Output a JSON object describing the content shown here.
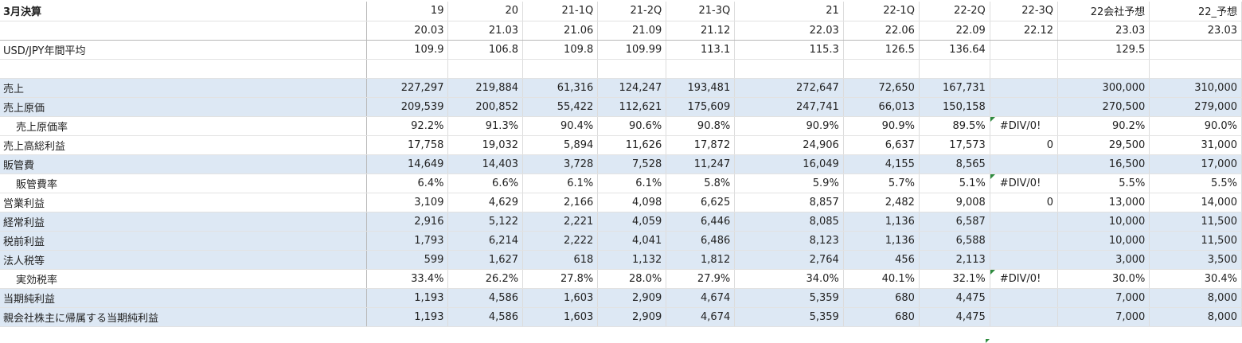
{
  "sheet": {
    "corner_label": "3月決算",
    "periods": [
      "19",
      "20",
      "21-1Q",
      "21-2Q",
      "21-3Q",
      "21",
      "22-1Q",
      "22-2Q",
      "22-3Q",
      "22会社予想",
      "22_予想"
    ],
    "dates": [
      "20.03",
      "21.03",
      "21.06",
      "21.09",
      "21.12",
      "22.03",
      "22.06",
      "22.09",
      "22.12",
      "23.03",
      "23.03"
    ],
    "fx_label": "USD/JPY年間平均",
    "fx_values": [
      "109.9",
      "106.8",
      "109.8",
      "109.99",
      "113.1",
      "115.3",
      "126.5",
      "136.64",
      "",
      "129.5",
      ""
    ],
    "rows": [
      {
        "label": "売上",
        "indent": false,
        "shaded": true,
        "values": [
          "227,297",
          "219,884",
          "61,316",
          "124,247",
          "193,481",
          "272,647",
          "72,650",
          "167,731",
          "",
          "300,000",
          "310,000"
        ]
      },
      {
        "label": "売上原価",
        "indent": false,
        "shaded": true,
        "values": [
          "209,539",
          "200,852",
          "55,422",
          "112,621",
          "175,609",
          "247,741",
          "66,013",
          "150,158",
          "",
          "270,500",
          "279,000"
        ]
      },
      {
        "label": "売上原価率",
        "indent": true,
        "shaded": false,
        "values": [
          "92.2%",
          "91.3%",
          "90.4%",
          "90.6%",
          "90.8%",
          "90.9%",
          "90.9%",
          "89.5%",
          "#DIV/0!",
          "90.2%",
          "90.0%"
        ]
      },
      {
        "label": "売上高総利益",
        "indent": false,
        "shaded": false,
        "values": [
          "17,758",
          "19,032",
          "5,894",
          "11,626",
          "17,872",
          "24,906",
          "6,637",
          "17,573",
          "0",
          "29,500",
          "31,000"
        ]
      },
      {
        "label": "販管費",
        "indent": false,
        "shaded": true,
        "values": [
          "14,649",
          "14,403",
          "3,728",
          "7,528",
          "11,247",
          "16,049",
          "4,155",
          "8,565",
          "",
          "16,500",
          "17,000"
        ]
      },
      {
        "label": "販管費率",
        "indent": true,
        "shaded": false,
        "values": [
          "6.4%",
          "6.6%",
          "6.1%",
          "6.1%",
          "5.8%",
          "5.9%",
          "5.7%",
          "5.1%",
          "#DIV/0!",
          "5.5%",
          "5.5%"
        ]
      },
      {
        "label": "営業利益",
        "indent": false,
        "shaded": false,
        "values": [
          "3,109",
          "4,629",
          "2,166",
          "4,098",
          "6,625",
          "8,857",
          "2,482",
          "9,008",
          "0",
          "13,000",
          "14,000"
        ]
      },
      {
        "label": "経常利益",
        "indent": false,
        "shaded": true,
        "values": [
          "2,916",
          "5,122",
          "2,221",
          "4,059",
          "6,446",
          "8,085",
          "1,136",
          "6,587",
          "",
          "10,000",
          "11,500"
        ]
      },
      {
        "label": "税前利益",
        "indent": false,
        "shaded": true,
        "values": [
          "1,793",
          "6,214",
          "2,222",
          "4,041",
          "6,486",
          "8,123",
          "1,136",
          "6,588",
          "",
          "10,000",
          "11,500"
        ]
      },
      {
        "label": "法人税等",
        "indent": false,
        "shaded": true,
        "values": [
          "599",
          "1,627",
          "618",
          "1,132",
          "1,812",
          "2,764",
          "456",
          "2,113",
          "",
          "3,000",
          "3,500"
        ]
      },
      {
        "label": "実効税率",
        "indent": true,
        "shaded": false,
        "values": [
          "33.4%",
          "26.2%",
          "27.8%",
          "28.0%",
          "27.9%",
          "34.0%",
          "40.1%",
          "32.1%",
          "#DIV/0!",
          "30.0%",
          "30.4%"
        ]
      },
      {
        "label": "当期純利益",
        "indent": false,
        "shaded": true,
        "values": [
          "1,193",
          "4,586",
          "1,603",
          "2,909",
          "4,674",
          "5,359",
          "680",
          "4,475",
          "",
          "7,000",
          "8,000"
        ]
      },
      {
        "label": "親会社株主に帰属する当期純利益",
        "indent": false,
        "shaded": true,
        "values": [
          "1,193",
          "4,586",
          "1,603",
          "2,909",
          "4,674",
          "5,359",
          "680",
          "4,475",
          "",
          "7,000",
          "8,000"
        ]
      }
    ],
    "colors": {
      "shade": "#dde8f4",
      "error_marker": "#2e8b3e",
      "gridline": "#dcdcdc"
    }
  }
}
